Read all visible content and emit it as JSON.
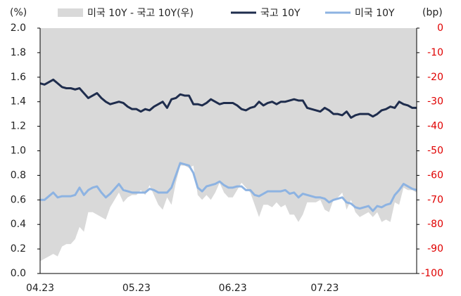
{
  "chart_data": {
    "type": "line",
    "y_label": "(%)",
    "y2_label": "(bp)",
    "categories": [
      "04.23",
      null,
      null,
      null,
      null,
      null,
      null,
      null,
      null,
      null,
      null,
      null,
      null,
      null,
      null,
      null,
      null,
      null,
      null,
      null,
      null,
      null,
      "05.23",
      null,
      null,
      null,
      null,
      null,
      null,
      null,
      null,
      null,
      null,
      null,
      null,
      null,
      null,
      null,
      null,
      null,
      null,
      null,
      null,
      null,
      "06.23",
      null,
      null,
      null,
      null,
      null,
      null,
      null,
      null,
      null,
      null,
      null,
      null,
      null,
      null,
      null,
      null,
      null,
      null,
      null,
      null,
      "07.23",
      null,
      null,
      null,
      null,
      null,
      null,
      null,
      null,
      null,
      null,
      null,
      null,
      null,
      null,
      null,
      null,
      null,
      null,
      null,
      null,
      null
    ],
    "ylim": [
      0,
      2
    ],
    "yticks": [
      {
        "value": 0,
        "label": "0.0"
      },
      {
        "value": 0.2,
        "label": "0.2"
      },
      {
        "value": 0.4,
        "label": "0.4"
      },
      {
        "value": 0.6,
        "label": "0.6"
      },
      {
        "value": 0.8,
        "label": "0.8"
      },
      {
        "value": 1,
        "label": "1.0"
      },
      {
        "value": 1.2,
        "label": "1.2"
      },
      {
        "value": 1.4,
        "label": "1.4"
      },
      {
        "value": 1.6,
        "label": "1.6"
      },
      {
        "value": 1.8,
        "label": "1.8"
      },
      {
        "value": 2,
        "label": "2.0"
      }
    ],
    "y2lim": [
      -100,
      0
    ],
    "y2ticks": [
      0,
      -10,
      -20,
      -30,
      -40,
      -50,
      -60,
      -70,
      -80,
      -90,
      -100
    ],
    "y2_tick_color": "#e00000",
    "series": [
      {
        "name": "미국 10Y - 국고 10Y(우)",
        "type": "area",
        "axis": "y2",
        "color": "#d9d9d9",
        "values": [
          -95,
          -94,
          -93,
          -92,
          -93,
          -89,
          -88,
          -88,
          -86,
          -81,
          -83,
          -75,
          -75,
          -76,
          -77,
          -78,
          -73,
          -70,
          -67,
          -71,
          -69,
          -68,
          -68,
          -66,
          -68,
          -64,
          -68,
          -72,
          -74,
          -69,
          -72,
          -63,
          -56,
          -56,
          -57,
          -56,
          -68,
          -70,
          -68,
          -70,
          -67,
          -63,
          -67,
          -69,
          -69,
          -66,
          -63,
          -65,
          -67,
          -72,
          -77,
          -72,
          -72,
          -73,
          -71,
          -73,
          -72,
          -76,
          -76,
          -79,
          -76,
          -71,
          -71,
          -71,
          -70,
          -74,
          -75,
          -70,
          -69,
          -67,
          -74,
          -70,
          -75,
          -77,
          -76,
          -75,
          -77,
          -75,
          -79,
          -78,
          -79,
          -71,
          -72,
          -65,
          -66,
          -66,
          -67
        ]
      },
      {
        "name": "국고 10Y",
        "color": "#1f2d4d",
        "values": [
          1.55,
          1.54,
          1.56,
          1.58,
          1.55,
          1.52,
          1.51,
          1.51,
          1.5,
          1.51,
          1.47,
          1.43,
          1.45,
          1.47,
          1.43,
          1.4,
          1.38,
          1.39,
          1.4,
          1.39,
          1.36,
          1.34,
          1.34,
          1.32,
          1.34,
          1.33,
          1.36,
          1.38,
          1.4,
          1.35,
          1.42,
          1.43,
          1.46,
          1.45,
          1.45,
          1.38,
          1.38,
          1.37,
          1.39,
          1.42,
          1.4,
          1.38,
          1.39,
          1.39,
          1.39,
          1.37,
          1.34,
          1.33,
          1.35,
          1.36,
          1.4,
          1.37,
          1.39,
          1.4,
          1.38,
          1.4,
          1.4,
          1.41,
          1.42,
          1.41,
          1.41,
          1.35,
          1.34,
          1.33,
          1.32,
          1.35,
          1.33,
          1.3,
          1.3,
          1.29,
          1.32,
          1.27,
          1.29,
          1.3,
          1.3,
          1.3,
          1.28,
          1.3,
          1.33,
          1.34,
          1.36,
          1.35,
          1.4,
          1.38,
          1.37,
          1.35,
          1.35
        ]
      },
      {
        "name": "미국 10Y",
        "color": "#8db3e2",
        "values": [
          0.6,
          0.6,
          0.63,
          0.66,
          0.62,
          0.63,
          0.63,
          0.63,
          0.64,
          0.7,
          0.64,
          0.68,
          0.7,
          0.71,
          0.66,
          0.62,
          0.65,
          0.69,
          0.73,
          0.68,
          0.67,
          0.66,
          0.66,
          0.66,
          0.66,
          0.69,
          0.68,
          0.66,
          0.66,
          0.66,
          0.7,
          0.8,
          0.9,
          0.89,
          0.88,
          0.82,
          0.7,
          0.67,
          0.71,
          0.72,
          0.73,
          0.75,
          0.72,
          0.7,
          0.7,
          0.71,
          0.71,
          0.68,
          0.68,
          0.64,
          0.63,
          0.65,
          0.67,
          0.67,
          0.67,
          0.67,
          0.68,
          0.65,
          0.66,
          0.62,
          0.65,
          0.64,
          0.63,
          0.62,
          0.62,
          0.61,
          0.58,
          0.6,
          0.61,
          0.62,
          0.58,
          0.57,
          0.54,
          0.53,
          0.54,
          0.55,
          0.51,
          0.55,
          0.54,
          0.56,
          0.57,
          0.64,
          0.68,
          0.73,
          0.71,
          0.69,
          0.68
        ]
      }
    ]
  }
}
